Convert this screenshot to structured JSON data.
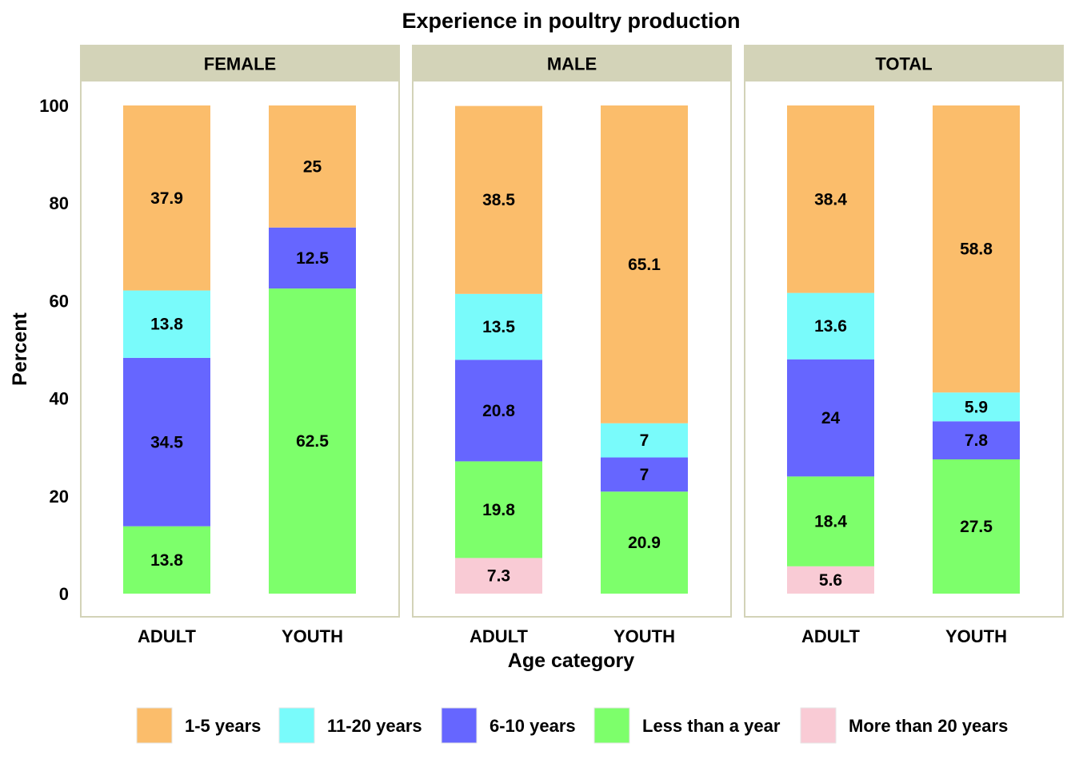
{
  "chart_data": {
    "type": "bar",
    "stacked": true,
    "title": "Experience in poultry production",
    "xlabel": "Age category",
    "ylabel": "Percent",
    "ylim": [
      0,
      100
    ],
    "yticks": [
      "0",
      "20",
      "40",
      "60",
      "80",
      "100"
    ],
    "categories": [
      "ADULT",
      "YOUTH"
    ],
    "legend_position": "bottom",
    "grid": false,
    "legend": [
      {
        "name": "1-5 years",
        "color": "#FBBD6B"
      },
      {
        "name": "11-20 years",
        "color": "#79FBFB"
      },
      {
        "name": "6-10 years",
        "color": "#6666FF"
      },
      {
        "name": "Less than a year",
        "color": "#7DFF6B"
      },
      {
        "name": "More than 20 years",
        "color": "#F9CBD5"
      }
    ],
    "stack_order": [
      "More than 20 years",
      "Less than a year",
      "6-10 years",
      "11-20 years",
      "1-5 years"
    ],
    "panels": [
      {
        "name": "FEMALE",
        "bars": [
          {
            "category": "ADULT",
            "segments": [
              {
                "series": "More than 20 years",
                "value": 0,
                "label": ""
              },
              {
                "series": "Less than a year",
                "value": 13.8,
                "label": "13.8"
              },
              {
                "series": "6-10 years",
                "value": 34.5,
                "label": "34.5"
              },
              {
                "series": "11-20 years",
                "value": 13.8,
                "label": "13.8"
              },
              {
                "series": "1-5 years",
                "value": 37.9,
                "label": "37.9"
              }
            ]
          },
          {
            "category": "YOUTH",
            "segments": [
              {
                "series": "More than 20 years",
                "value": 0,
                "label": ""
              },
              {
                "series": "Less than a year",
                "value": 62.5,
                "label": "62.5"
              },
              {
                "series": "6-10 years",
                "value": 12.5,
                "label": "12.5"
              },
              {
                "series": "11-20 years",
                "value": 0,
                "label": ""
              },
              {
                "series": "1-5 years",
                "value": 25,
                "label": "25"
              }
            ]
          }
        ]
      },
      {
        "name": "MALE",
        "bars": [
          {
            "category": "ADULT",
            "segments": [
              {
                "series": "More than 20 years",
                "value": 7.3,
                "label": "7.3"
              },
              {
                "series": "Less than a year",
                "value": 19.8,
                "label": "19.8"
              },
              {
                "series": "6-10 years",
                "value": 20.8,
                "label": "20.8"
              },
              {
                "series": "11-20 years",
                "value": 13.5,
                "label": "13.5"
              },
              {
                "series": "1-5 years",
                "value": 38.5,
                "label": "38.5"
              }
            ]
          },
          {
            "category": "YOUTH",
            "segments": [
              {
                "series": "More than 20 years",
                "value": 0,
                "label": ""
              },
              {
                "series": "Less than a year",
                "value": 20.9,
                "label": "20.9"
              },
              {
                "series": "6-10 years",
                "value": 7,
                "label": "7"
              },
              {
                "series": "11-20 years",
                "value": 7,
                "label": "7"
              },
              {
                "series": "1-5 years",
                "value": 65.1,
                "label": "65.1"
              }
            ]
          }
        ]
      },
      {
        "name": "TOTAL",
        "bars": [
          {
            "category": "ADULT",
            "segments": [
              {
                "series": "More than 20 years",
                "value": 5.6,
                "label": "5.6"
              },
              {
                "series": "Less than a year",
                "value": 18.4,
                "label": "18.4"
              },
              {
                "series": "6-10 years",
                "value": 24,
                "label": "24"
              },
              {
                "series": "11-20 years",
                "value": 13.6,
                "label": "13.6"
              },
              {
                "series": "1-5 years",
                "value": 38.4,
                "label": "38.4"
              }
            ]
          },
          {
            "category": "YOUTH",
            "segments": [
              {
                "series": "More than 20 years",
                "value": 0,
                "label": ""
              },
              {
                "series": "Less than a year",
                "value": 27.5,
                "label": "27.5"
              },
              {
                "series": "6-10 years",
                "value": 7.8,
                "label": "7.8"
              },
              {
                "series": "11-20 years",
                "value": 5.9,
                "label": "5.9"
              },
              {
                "series": "1-5 years",
                "value": 58.8,
                "label": "58.8"
              }
            ]
          }
        ]
      }
    ],
    "colors": {
      "strip_bg": "#D3D3B8",
      "panel_border": "#D3D3B8"
    }
  }
}
